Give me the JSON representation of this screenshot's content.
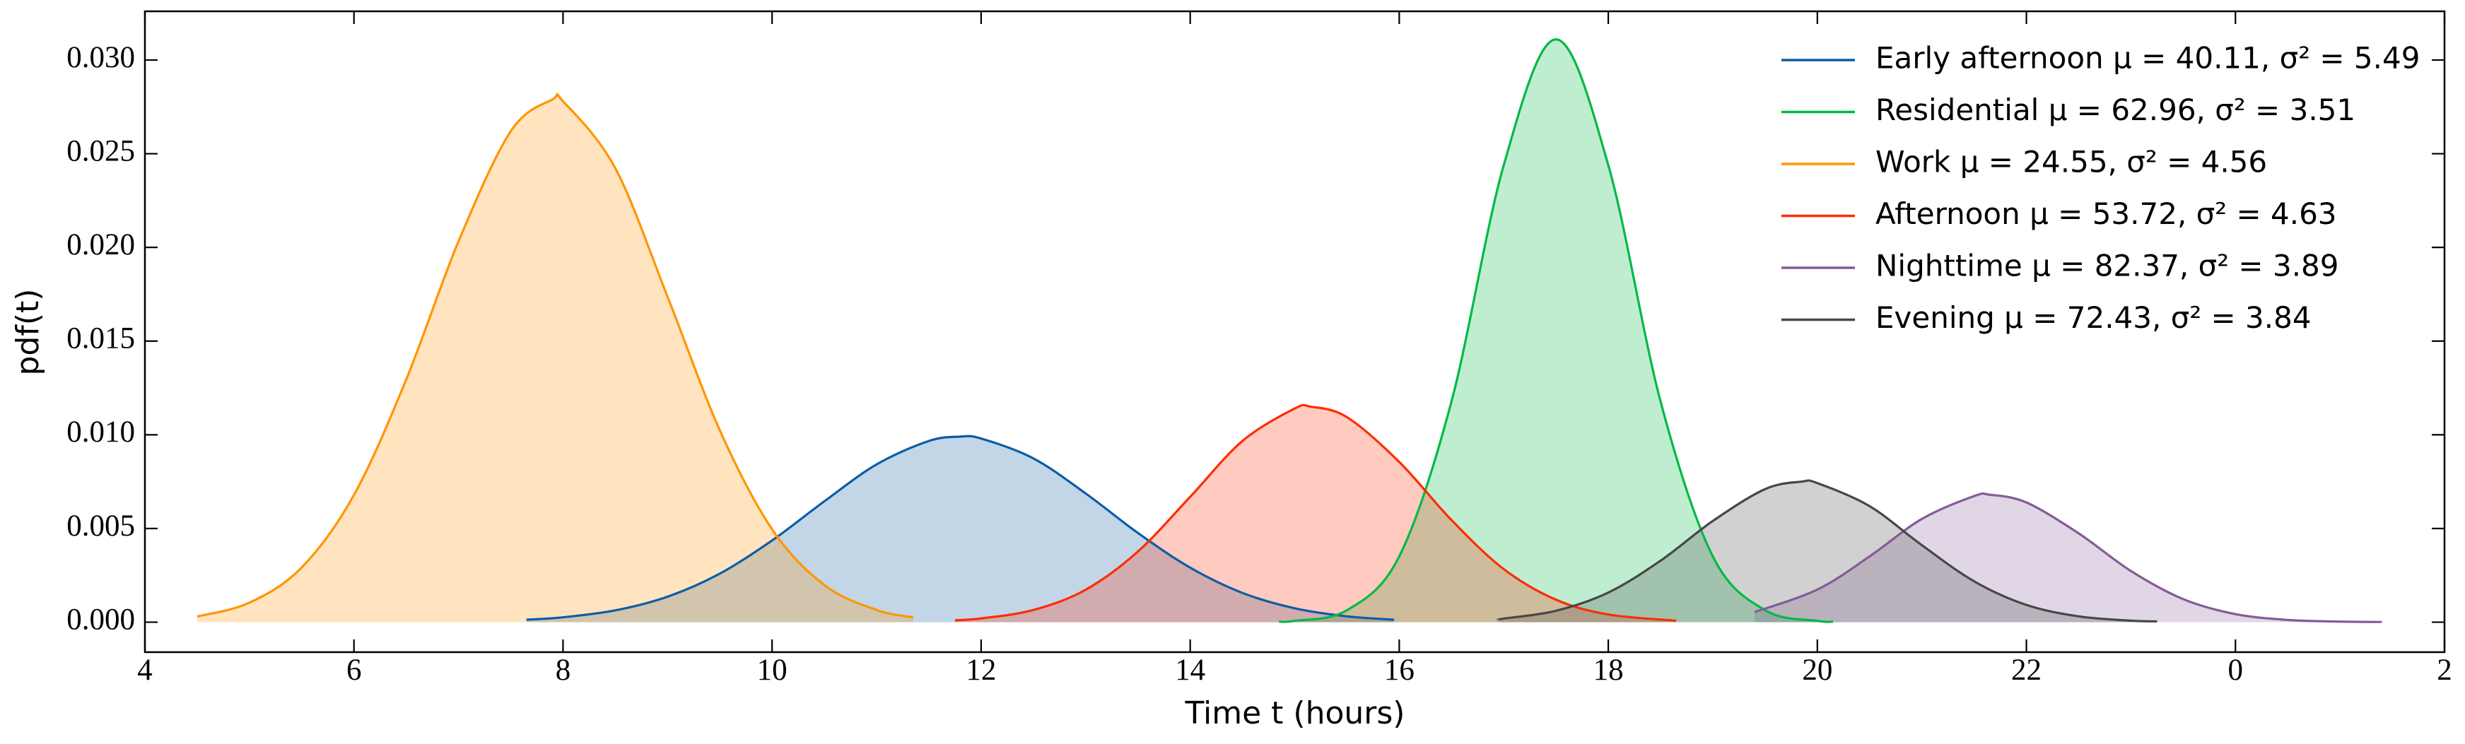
{
  "chart_data": {
    "type": "line",
    "x_label": "Time t (hours)",
    "y_label": "pdf(t)",
    "xlim": [
      4,
      26
    ],
    "ylim": [
      -0.0016,
      0.0326
    ],
    "xticks": [
      4,
      6,
      8,
      10,
      12,
      14,
      16,
      18,
      20,
      22,
      {
        "value": 24,
        "label": "0"
      },
      {
        "value": 26,
        "label": "2"
      }
    ],
    "yticks": [
      {
        "value": 0,
        "label": "0.000"
      },
      0.005,
      {
        "value": 0.01,
        "label": "0.010"
      },
      0.015,
      {
        "value": 0.02,
        "label": "0.020"
      },
      0.025,
      {
        "value": 0.03,
        "label": "0.030"
      }
    ],
    "fill_opacity": 0.25,
    "legend": "upper right",
    "series": [
      {
        "name": "Early afternoon μ = 40.11, σ² = 5.49",
        "color": "#0C5DA5",
        "x": [
          7.65,
          8,
          8.5,
          9,
          9.5,
          10,
          10.5,
          11,
          11.5,
          11.8,
          12,
          12.5,
          13,
          13.5,
          14,
          14.5,
          15,
          15.5,
          15.95
        ],
        "values": [
          0.00013,
          0.00026,
          0.00063,
          0.00136,
          0.00259,
          0.00436,
          0.00645,
          0.00842,
          0.00967,
          0.0099,
          0.0098,
          0.00874,
          0.00687,
          0.00476,
          0.00291,
          0.00156,
          0.00074,
          0.00031,
          0.00013
        ]
      },
      {
        "name": "Residential μ = 62.96, σ² = 3.51",
        "color": "#00B945",
        "x": [
          14.85,
          15,
          15.5,
          16,
          16.5,
          17,
          17.5,
          18,
          18.5,
          19,
          19.5,
          20,
          20.15
        ],
        "values": [
          3e-05,
          7e-05,
          0.00064,
          0.00351,
          0.01178,
          0.02439,
          0.0311,
          0.02439,
          0.01178,
          0.00351,
          0.00064,
          7e-05,
          3e-05
        ]
      },
      {
        "name": "Work μ = 24.55, σ² = 4.56",
        "color": "#FF9500",
        "x": [
          4.5,
          5,
          5.5,
          6,
          6.5,
          7,
          7.5,
          7.9,
          8,
          8.5,
          9,
          9.5,
          10,
          10.5,
          11,
          11.35
        ],
        "values": [
          0.0003,
          0.00104,
          0.00292,
          0.00679,
          0.01295,
          0.02032,
          0.0262,
          0.0279,
          0.0278,
          0.02423,
          0.01737,
          0.01024,
          0.00496,
          0.00198,
          0.00065,
          0.00026
        ]
      },
      {
        "name": "Afternoon μ = 53.72, σ² = 4.63",
        "color": "#FF2C00",
        "x": [
          11.75,
          12,
          12.5,
          13,
          13.5,
          14,
          14.5,
          15,
          15.15,
          15.5,
          16,
          16.5,
          17,
          17.5,
          18,
          18.65
        ],
        "values": [
          0.0001,
          0.0002,
          0.00065,
          0.00173,
          0.00377,
          0.00669,
          0.00967,
          0.0114,
          0.0115,
          0.01094,
          0.00855,
          0.00545,
          0.00283,
          0.0012,
          0.00041,
          8e-05
        ]
      },
      {
        "name": "Nighttime μ = 82.37, σ² = 3.89",
        "color": "#845B97",
        "x": [
          19.4,
          20,
          20.5,
          21,
          21.5,
          21.65,
          22,
          22.5,
          23,
          23.5,
          24,
          24.5,
          25,
          25.4
        ],
        "values": [
          0.00054,
          0.00174,
          0.00351,
          0.00551,
          0.00673,
          0.0068,
          0.00639,
          0.00474,
          0.00273,
          0.00123,
          0.00043,
          0.00012,
          3e-05,
          1e-05
        ]
      },
      {
        "name": "Evening μ = 72.43, σ² = 3.84",
        "color": "#474747",
        "x": [
          16.95,
          17,
          17.5,
          18,
          18.5,
          19,
          19.5,
          19.85,
          20,
          20.5,
          21,
          21.5,
          22,
          22.5,
          23,
          23.25
        ],
        "values": [
          0.00016,
          0.00019,
          0.00061,
          0.00158,
          0.00328,
          0.0054,
          0.0071,
          0.0075,
          0.00742,
          0.00619,
          0.00411,
          0.00218,
          0.00092,
          0.00031,
          8e-05,
          4e-05
        ]
      }
    ]
  }
}
